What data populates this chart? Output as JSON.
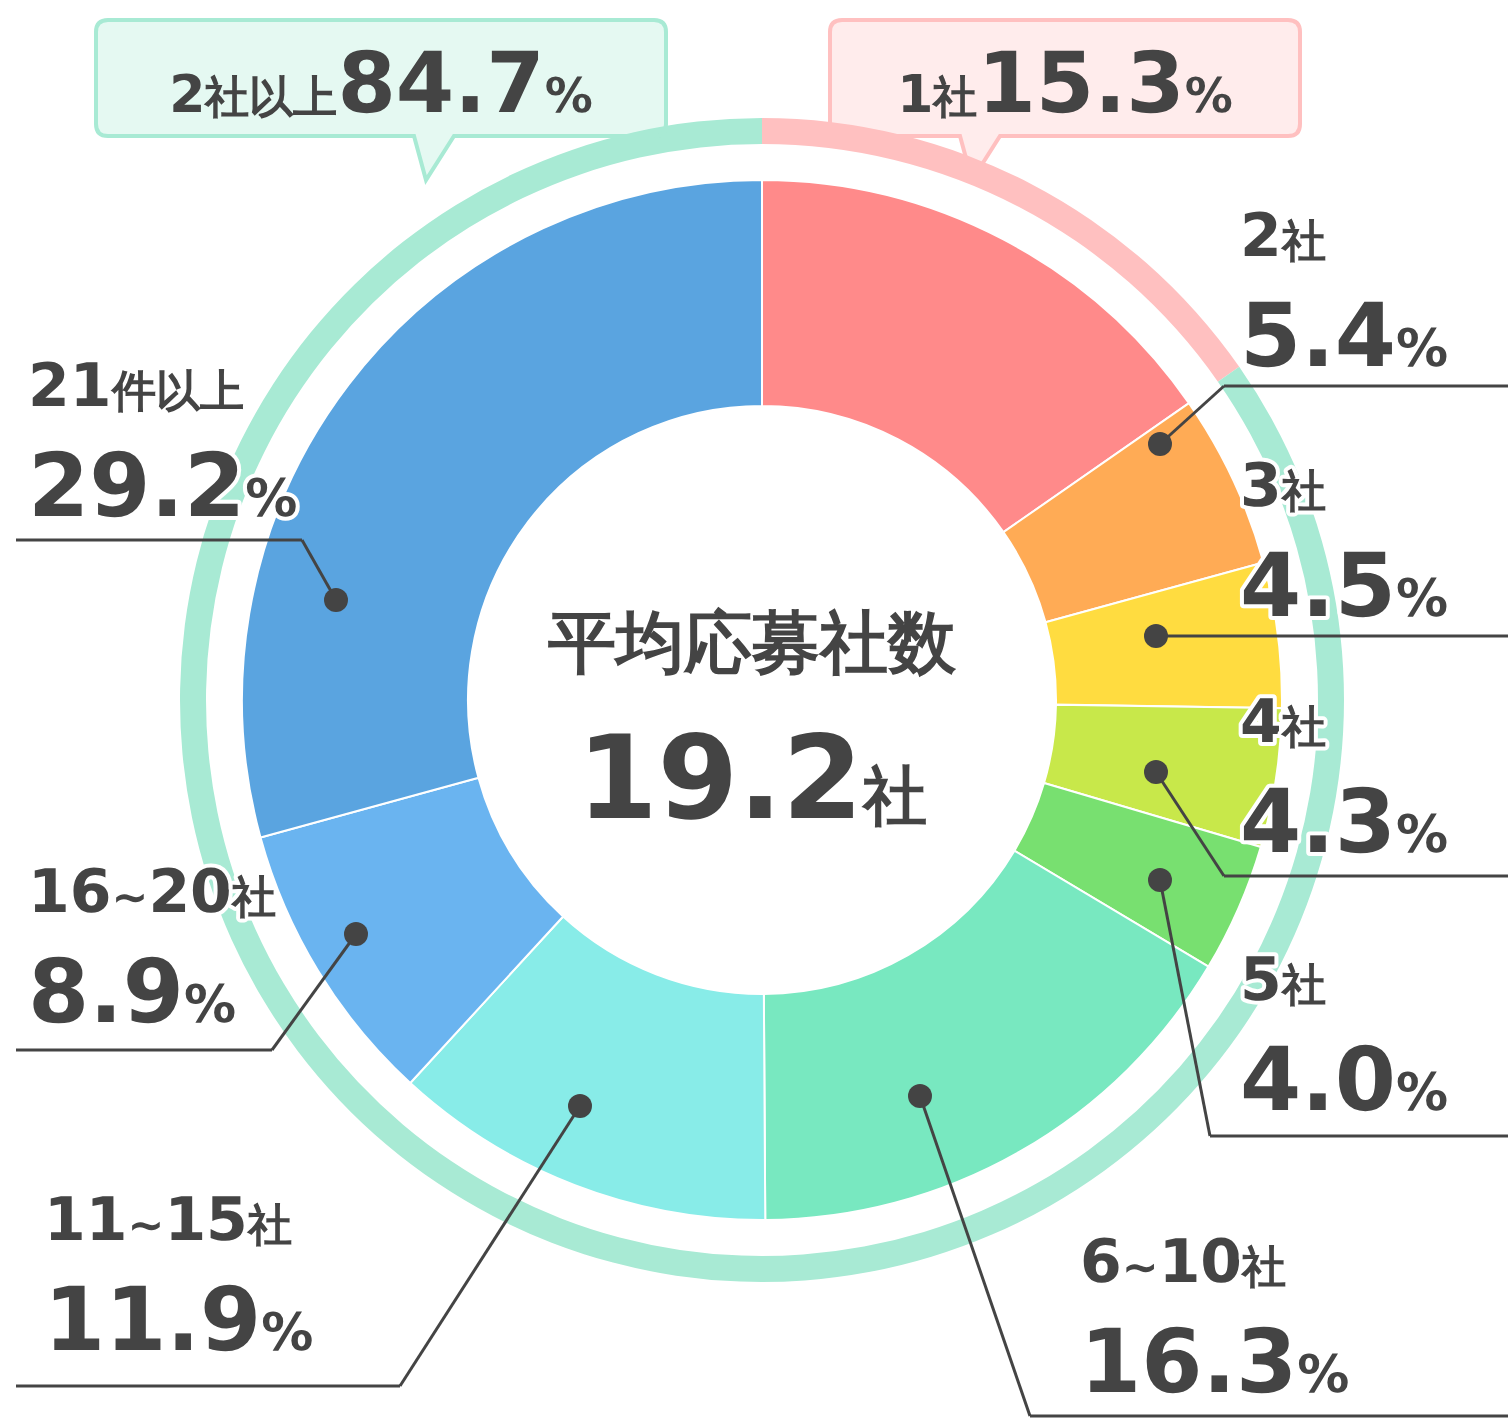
{
  "chart_data": [
    {
      "type": "donut",
      "annotations": [
        "平均応募社数",
        "19.2社"
      ],
      "categories": [
        null,
        "2社",
        "3社",
        "4社",
        "5社",
        "6~10社",
        "11~15社",
        "16~20社",
        "21件以上"
      ],
      "values": [
        15.3,
        5.4,
        4.5,
        4.3,
        4.0,
        16.3,
        11.9,
        8.9,
        29.2
      ],
      "colors": [
        "#ff8a8a",
        "#ffab55",
        "#ffdc40",
        "#c8e84a",
        "#78e070",
        "#78e8c0",
        "#88ece8",
        "#6ab4f0",
        "#5aa4e0"
      ],
      "value_labels": [
        null,
        "5.4%",
        "4.5%",
        "4.3%",
        "4.0%",
        "16.3%",
        "11.9%",
        "8.9%",
        "29.2%"
      ]
    },
    {
      "type": "donut",
      "categories": [
        "1社",
        "2社以上"
      ],
      "values": [
        15.3,
        84.7
      ],
      "colors": [
        "#ffc0c0",
        "#a8ead4"
      ],
      "value_labels": [
        "15.3%",
        "84.7%"
      ]
    }
  ]
}
